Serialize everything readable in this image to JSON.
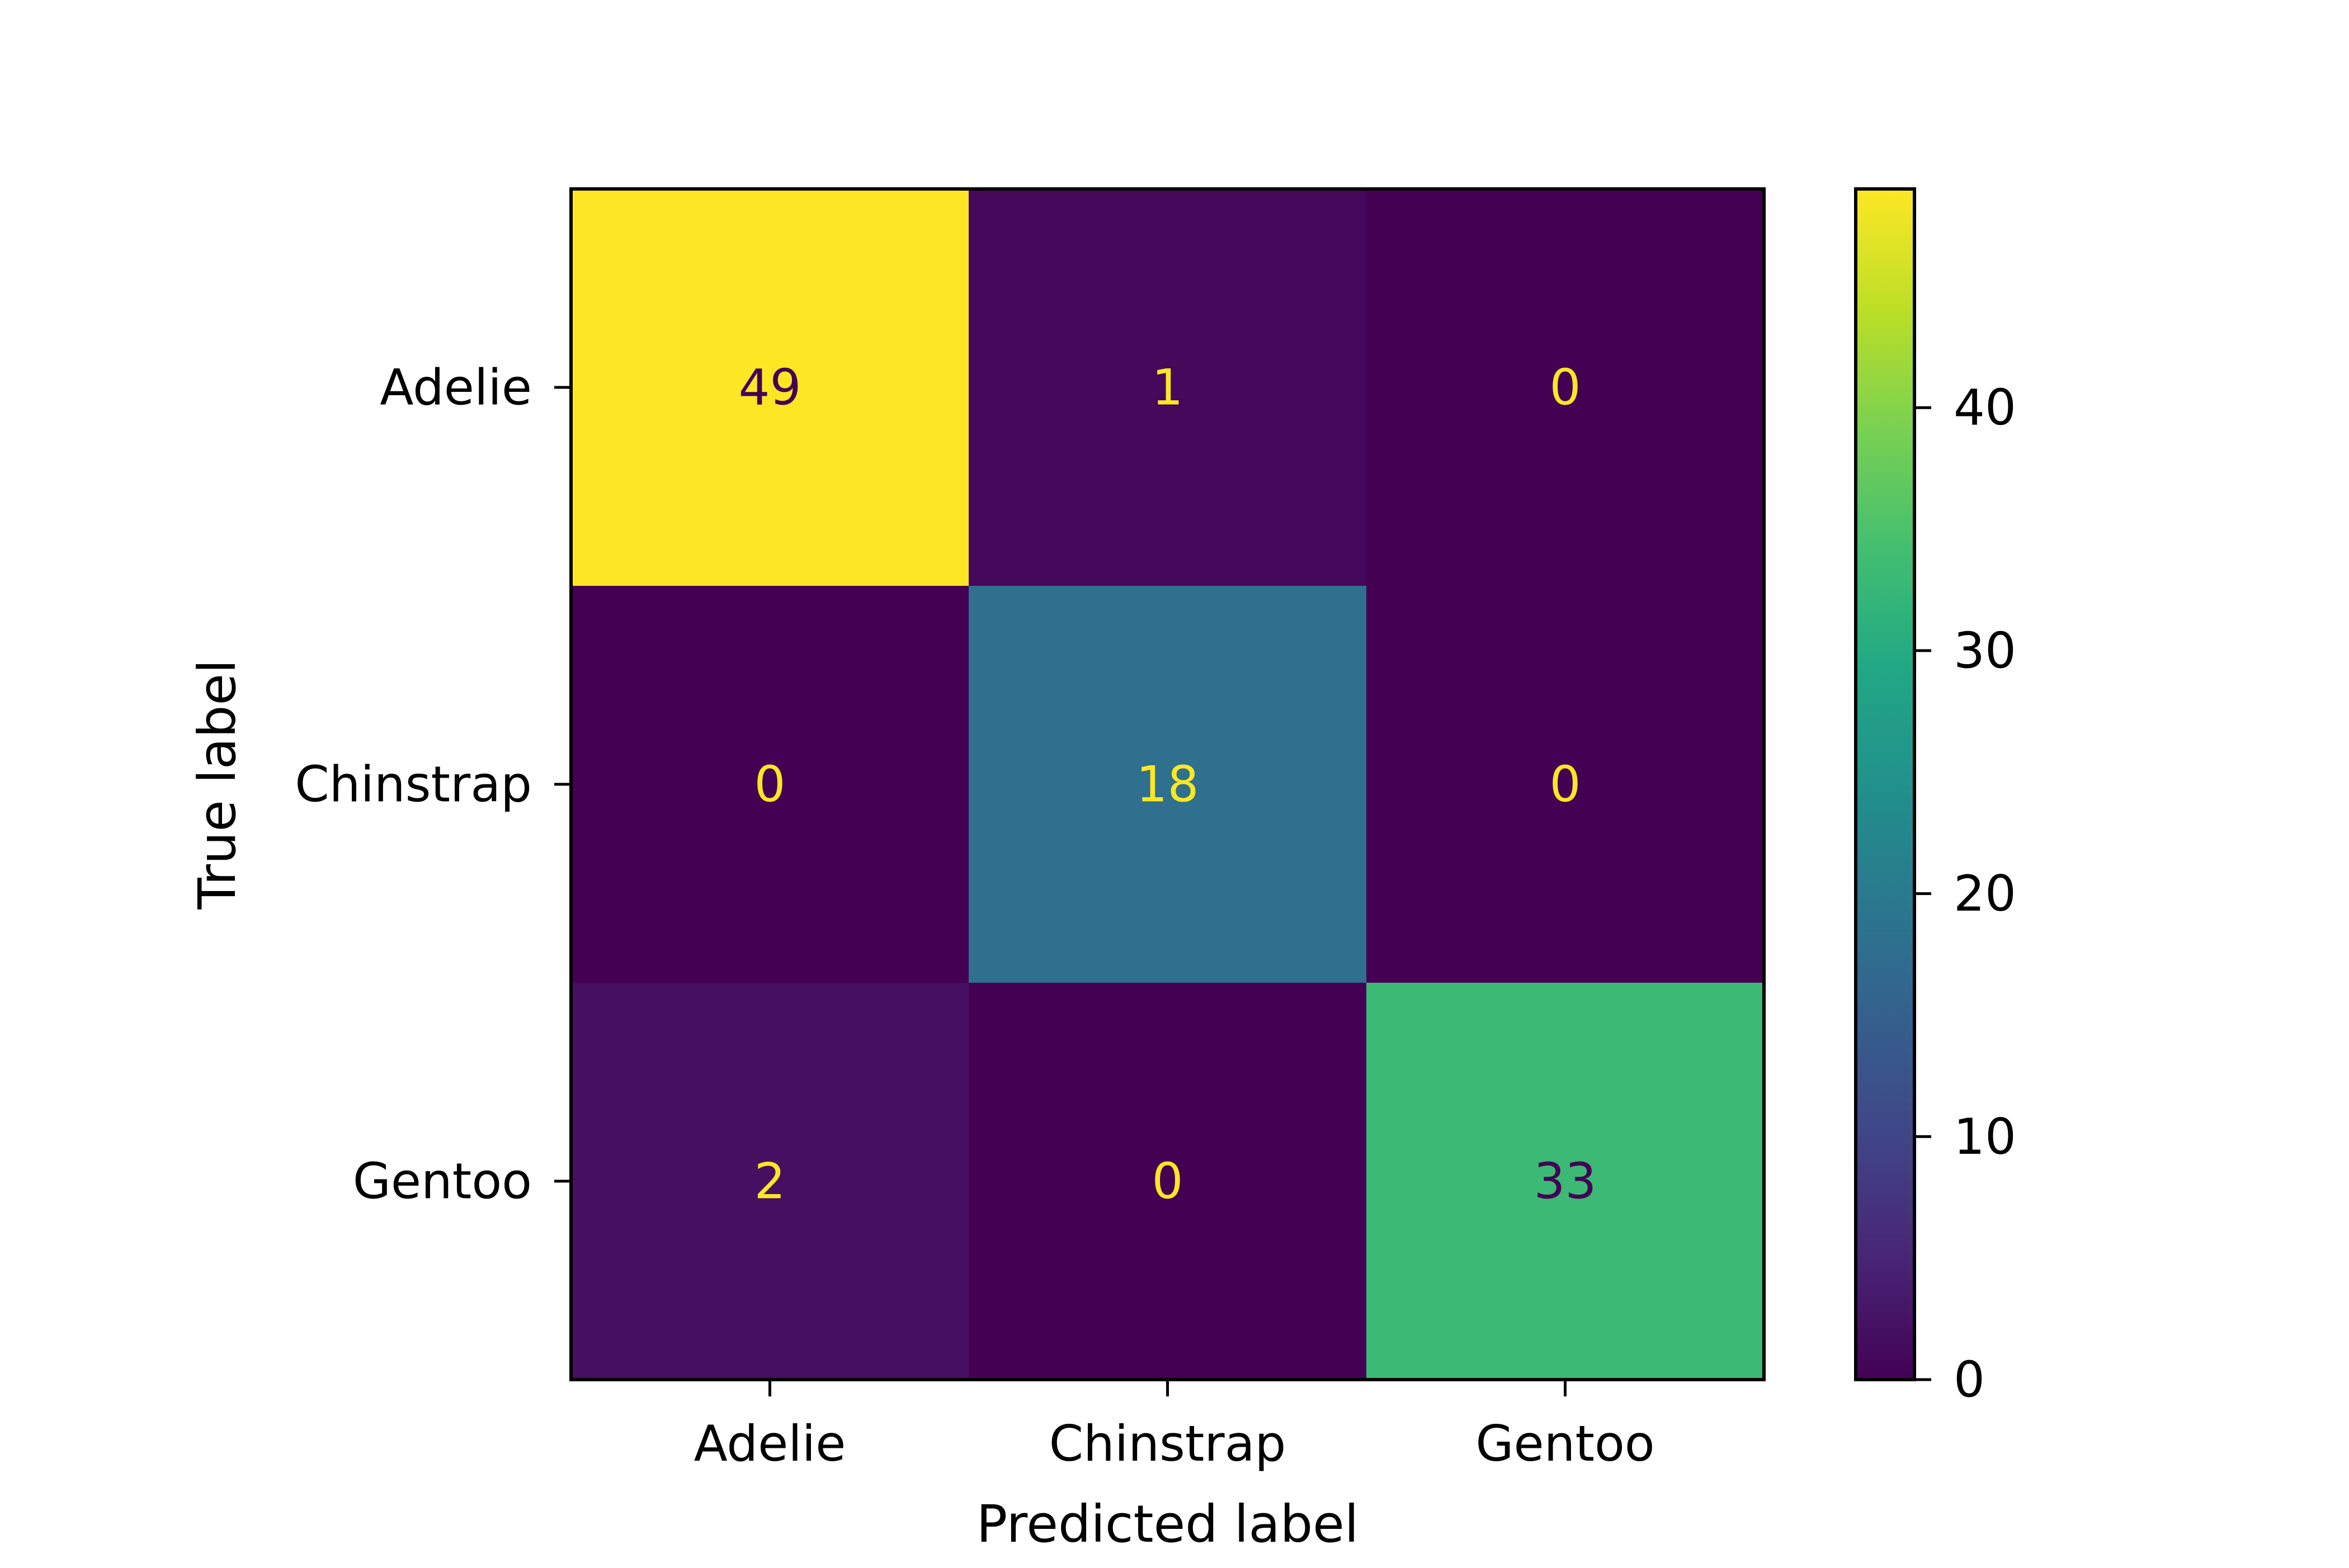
{
  "chart_data": {
    "type": "heatmap",
    "title": "",
    "xlabel": "Predicted label",
    "ylabel": "True label",
    "x_categories": [
      "Adelie",
      "Chinstrap",
      "Gentoo"
    ],
    "y_categories": [
      "Adelie",
      "Chinstrap",
      "Gentoo"
    ],
    "matrix": [
      [
        49,
        1,
        0
      ],
      [
        0,
        18,
        0
      ],
      [
        2,
        0,
        33
      ]
    ],
    "colormap": "viridis",
    "color_range": [
      0,
      49
    ],
    "colorbar": {
      "ticks": [
        0,
        10,
        20,
        30,
        40
      ],
      "tick_labels": [
        "0",
        "10",
        "20",
        "30",
        "40"
      ]
    },
    "grid": false,
    "text_colors": {
      "on_dark": "#fde725",
      "on_light": "#440154"
    }
  }
}
